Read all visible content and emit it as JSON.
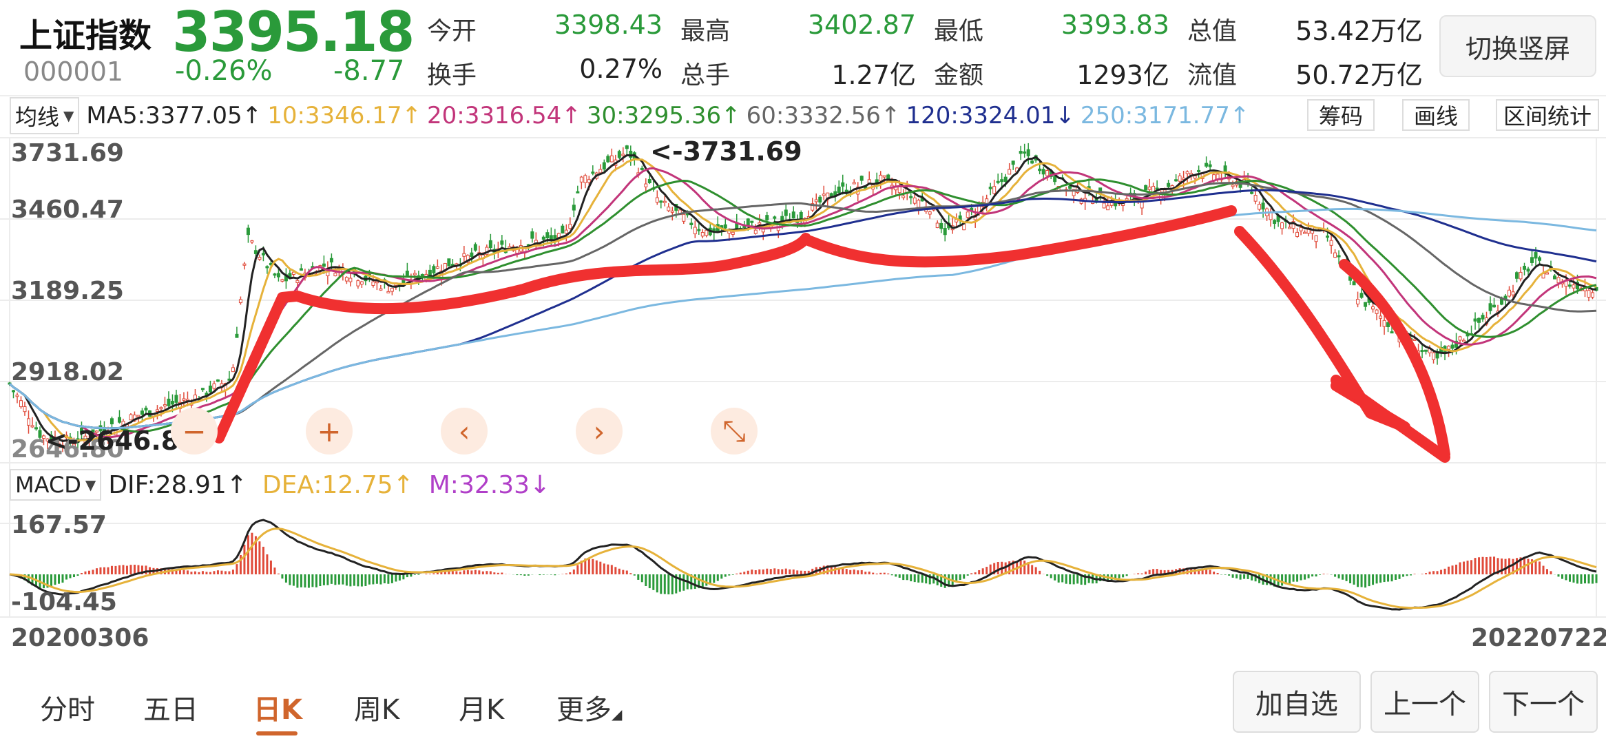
{
  "quote": {
    "name": "上证指数",
    "price": "3395.18",
    "code": "000001",
    "change_pct": "-0.26%",
    "change": "-8.77",
    "stats": [
      {
        "label": "今开",
        "value": "3398.43",
        "color": "#2a9a3a"
      },
      {
        "label": "最高",
        "value": "3402.87",
        "color": "#2a9a3a"
      },
      {
        "label": "最低",
        "value": "3393.83",
        "color": "#2a9a3a"
      },
      {
        "label": "总值",
        "value": "53.42万亿",
        "color": "#222222"
      },
      {
        "label": "换手",
        "value": "0.27%",
        "color": "#222222"
      },
      {
        "label": "总手",
        "value": "1.27亿",
        "color": "#222222"
      },
      {
        "label": "金额",
        "value": "1293亿",
        "color": "#222222"
      },
      {
        "label": "流值",
        "value": "50.72万亿",
        "color": "#222222"
      }
    ],
    "switch_button": "切换竖屏"
  },
  "ma_bar": {
    "selector": "均线",
    "items": [
      {
        "text": "MA5:3377.05↑",
        "color": "#222222"
      },
      {
        "text": "10:3346.17↑",
        "color": "#e6b23a"
      },
      {
        "text": "20:3316.54↑",
        "color": "#c2357a"
      },
      {
        "text": "30:3295.36↑",
        "color": "#2f8f2f"
      },
      {
        "text": "60:3332.56↑",
        "color": "#666666"
      },
      {
        "text": "120:3324.01↓",
        "color": "#1f2f8f"
      },
      {
        "text": "250:3171.77↑",
        "color": "#7bb8e0"
      }
    ],
    "tools": [
      "筹码",
      "画线",
      "区间统计"
    ]
  },
  "main_chart": {
    "y_ticks": [
      "3731.69",
      "3460.47",
      "3189.25",
      "2918.02",
      "2646.80"
    ],
    "high_label": "<-3731.69",
    "low_label": "<-2646.80",
    "controls": [
      {
        "icon": "zoom-out-icon",
        "glyph": "−"
      },
      {
        "icon": "zoom-in-icon",
        "glyph": "+"
      },
      {
        "icon": "scroll-left-icon",
        "glyph": "‹"
      },
      {
        "icon": "scroll-right-icon",
        "glyph": "›"
      },
      {
        "icon": "collapse-icon",
        "glyph": "⤡"
      }
    ]
  },
  "macd": {
    "selector": "MACD",
    "dif": "DIF:28.91↑",
    "dea": "DEA:12.75↑",
    "m": "M:32.33↓",
    "y_top": "167.57",
    "y_bottom": "-104.45"
  },
  "dates": {
    "start": "20200306",
    "end": "20220722"
  },
  "tabs": [
    "分时",
    "五日",
    "日K",
    "周K",
    "月K",
    "更多"
  ],
  "active_tab": "日K",
  "actions": [
    "加自选",
    "上一个",
    "下一个"
  ],
  "colors": {
    "up": "#e04a3a",
    "down": "#2a9a3a",
    "accent": "#d0652c"
  }
}
